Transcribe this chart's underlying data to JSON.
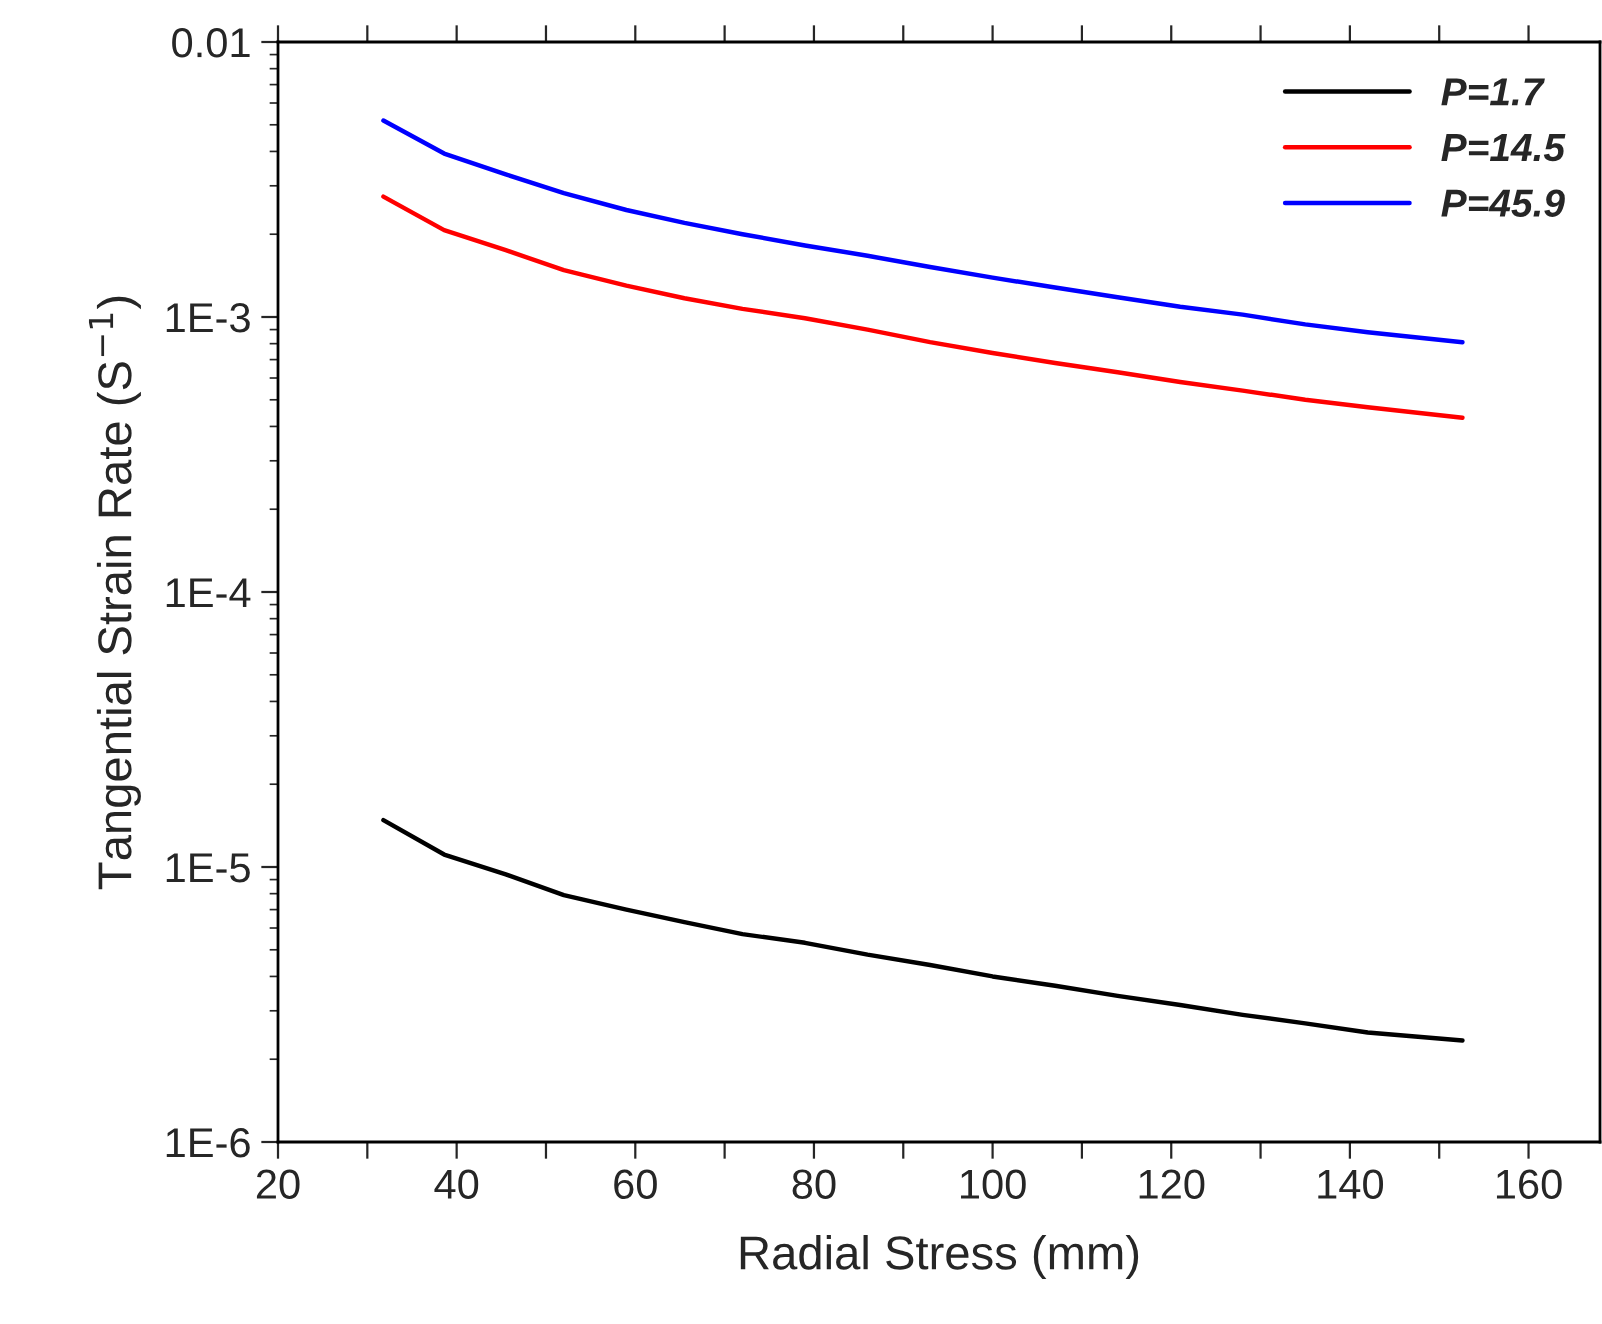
{
  "chart_data": {
    "type": "line",
    "xlabel": "Radial Stress (mm)",
    "ylabel": "Tangential Strain Rate (S$^{−1}$)",
    "x": [
      31.8,
      38.6,
      45.5,
      52,
      59,
      65.5,
      72,
      79,
      86,
      93,
      100,
      107,
      114,
      121,
      128,
      135,
      142,
      152.6
    ],
    "series": [
      {
        "name": "P=1.7",
        "color": "#000000",
        "values": [
          1.48e-05,
          1.11e-05,
          9.4e-06,
          7.9e-06,
          7e-06,
          6.3e-06,
          5.7e-06,
          5.3e-06,
          4.8e-06,
          4.4e-06,
          4e-06,
          3.7e-06,
          3.4e-06,
          3.15e-06,
          2.9e-06,
          2.7e-06,
          2.5e-06,
          2.34e-06
        ]
      },
      {
        "name": "P=14.5",
        "color": "#ff0000",
        "values": [
          0.00274,
          0.00207,
          0.00175,
          0.00148,
          0.0013,
          0.00117,
          0.00107,
          0.00099,
          0.0009,
          0.00081,
          0.00074,
          0.00068,
          0.00063,
          0.00058,
          0.00054,
          0.0005,
          0.00047,
          0.00043
        ]
      },
      {
        "name": "P=45.9",
        "color": "#0000ff",
        "values": [
          0.00518,
          0.00393,
          0.0033,
          0.00282,
          0.00245,
          0.0022,
          0.002,
          0.00182,
          0.00167,
          0.00152,
          0.00139,
          0.00128,
          0.00118,
          0.00109,
          0.00102,
          0.00094,
          0.00088,
          0.00081
        ]
      }
    ],
    "log": "y",
    "xlim": [
      20,
      168
    ],
    "ylim": [
      1e-06,
      0.01
    ],
    "xticks": [
      20,
      {
        "value": 30,
        "label": null
      },
      40,
      {
        "value": 50,
        "label": null
      },
      60,
      {
        "value": 70,
        "label": null
      },
      80,
      {
        "value": 90,
        "label": null
      },
      100,
      {
        "value": 110,
        "label": null
      },
      120,
      {
        "value": 130,
        "label": null
      },
      140,
      {
        "value": 150,
        "label": null
      },
      160
    ],
    "yticks": [
      {
        "value": 1e-06,
        "label": "1E-6"
      },
      {
        "value": 1e-05,
        "label": "1E-5"
      },
      {
        "value": 0.0001,
        "label": "1E-4"
      },
      {
        "value": 0.001,
        "label": "1E-3"
      },
      {
        "value": 0.01,
        "label": "0.01"
      }
    ],
    "legend": "top right",
    "grid": false,
    "line_style": "solid",
    "marker": "none"
  }
}
